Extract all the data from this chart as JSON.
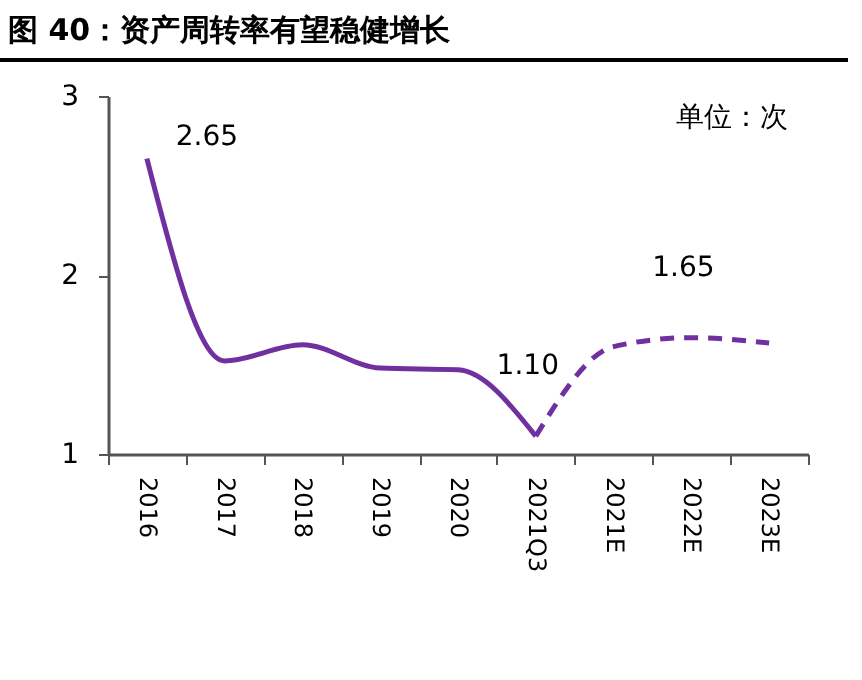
{
  "chart_data": {
    "type": "line",
    "title": "图 40：资产周转率有望稳健增长",
    "categories": [
      "2016",
      "2017",
      "2018",
      "2019",
      "2020",
      "2021Q3",
      "2021E",
      "2022E",
      "2023E"
    ],
    "series": [
      {
        "color": "#7030a0",
        "line_style": "solid",
        "values": [
          2.65,
          1.52,
          1.61,
          1.48,
          1.47,
          1.1,
          null,
          null,
          null
        ],
        "value_labels": [
          "2.65",
          null,
          null,
          null,
          null,
          "1.10",
          null,
          null,
          null
        ]
      },
      {
        "color": "#7030a0",
        "line_style": "dashed",
        "values": [
          null,
          null,
          null,
          null,
          null,
          1.1,
          1.6,
          1.65,
          1.62
        ],
        "value_labels": [
          null,
          null,
          null,
          null,
          null,
          null,
          null,
          "1.65",
          null
        ]
      }
    ],
    "ylim": [
      1,
      3
    ],
    "yticks": [
      1,
      2,
      3
    ],
    "grid": false,
    "marker": "none",
    "annotations": [
      "单位：次"
    ]
  }
}
